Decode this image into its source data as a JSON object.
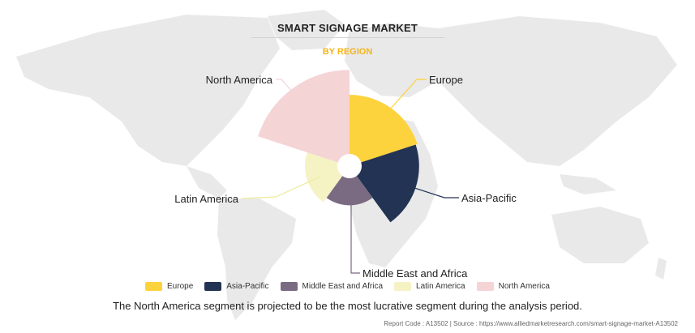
{
  "title": "SMART SIGNAGE MARKET",
  "subtitle": "BY REGION",
  "caption": "The North America segment is projected to be the most lucrative segment during the analysis period.",
  "footer": {
    "report_code": "Report Code : A13502",
    "separator": "|",
    "source": "Source : https://www.alliedmarketresearch.com/smart-signage-market-A13502"
  },
  "colors": {
    "Europe": "#fdd33d",
    "Asia-Pacific": "#233354",
    "Middle East and Africa": "#7a6b82",
    "Latin America": "#f5f3c4",
    "North America": "#f5d4d5"
  },
  "chart_data": {
    "type": "pie",
    "variant": "polar-area",
    "categories": [
      "Europe",
      "Asia-Pacific",
      "Middle East and Africa",
      "Latin America",
      "North America"
    ],
    "values": [
      4,
      3.9,
      2.2,
      2.5,
      5.4
    ],
    "legend_position": "bottom",
    "labels": [
      "Europe",
      "Asia-Pacific",
      "Middle East and Africa",
      "Latin America",
      "North America"
    ]
  }
}
